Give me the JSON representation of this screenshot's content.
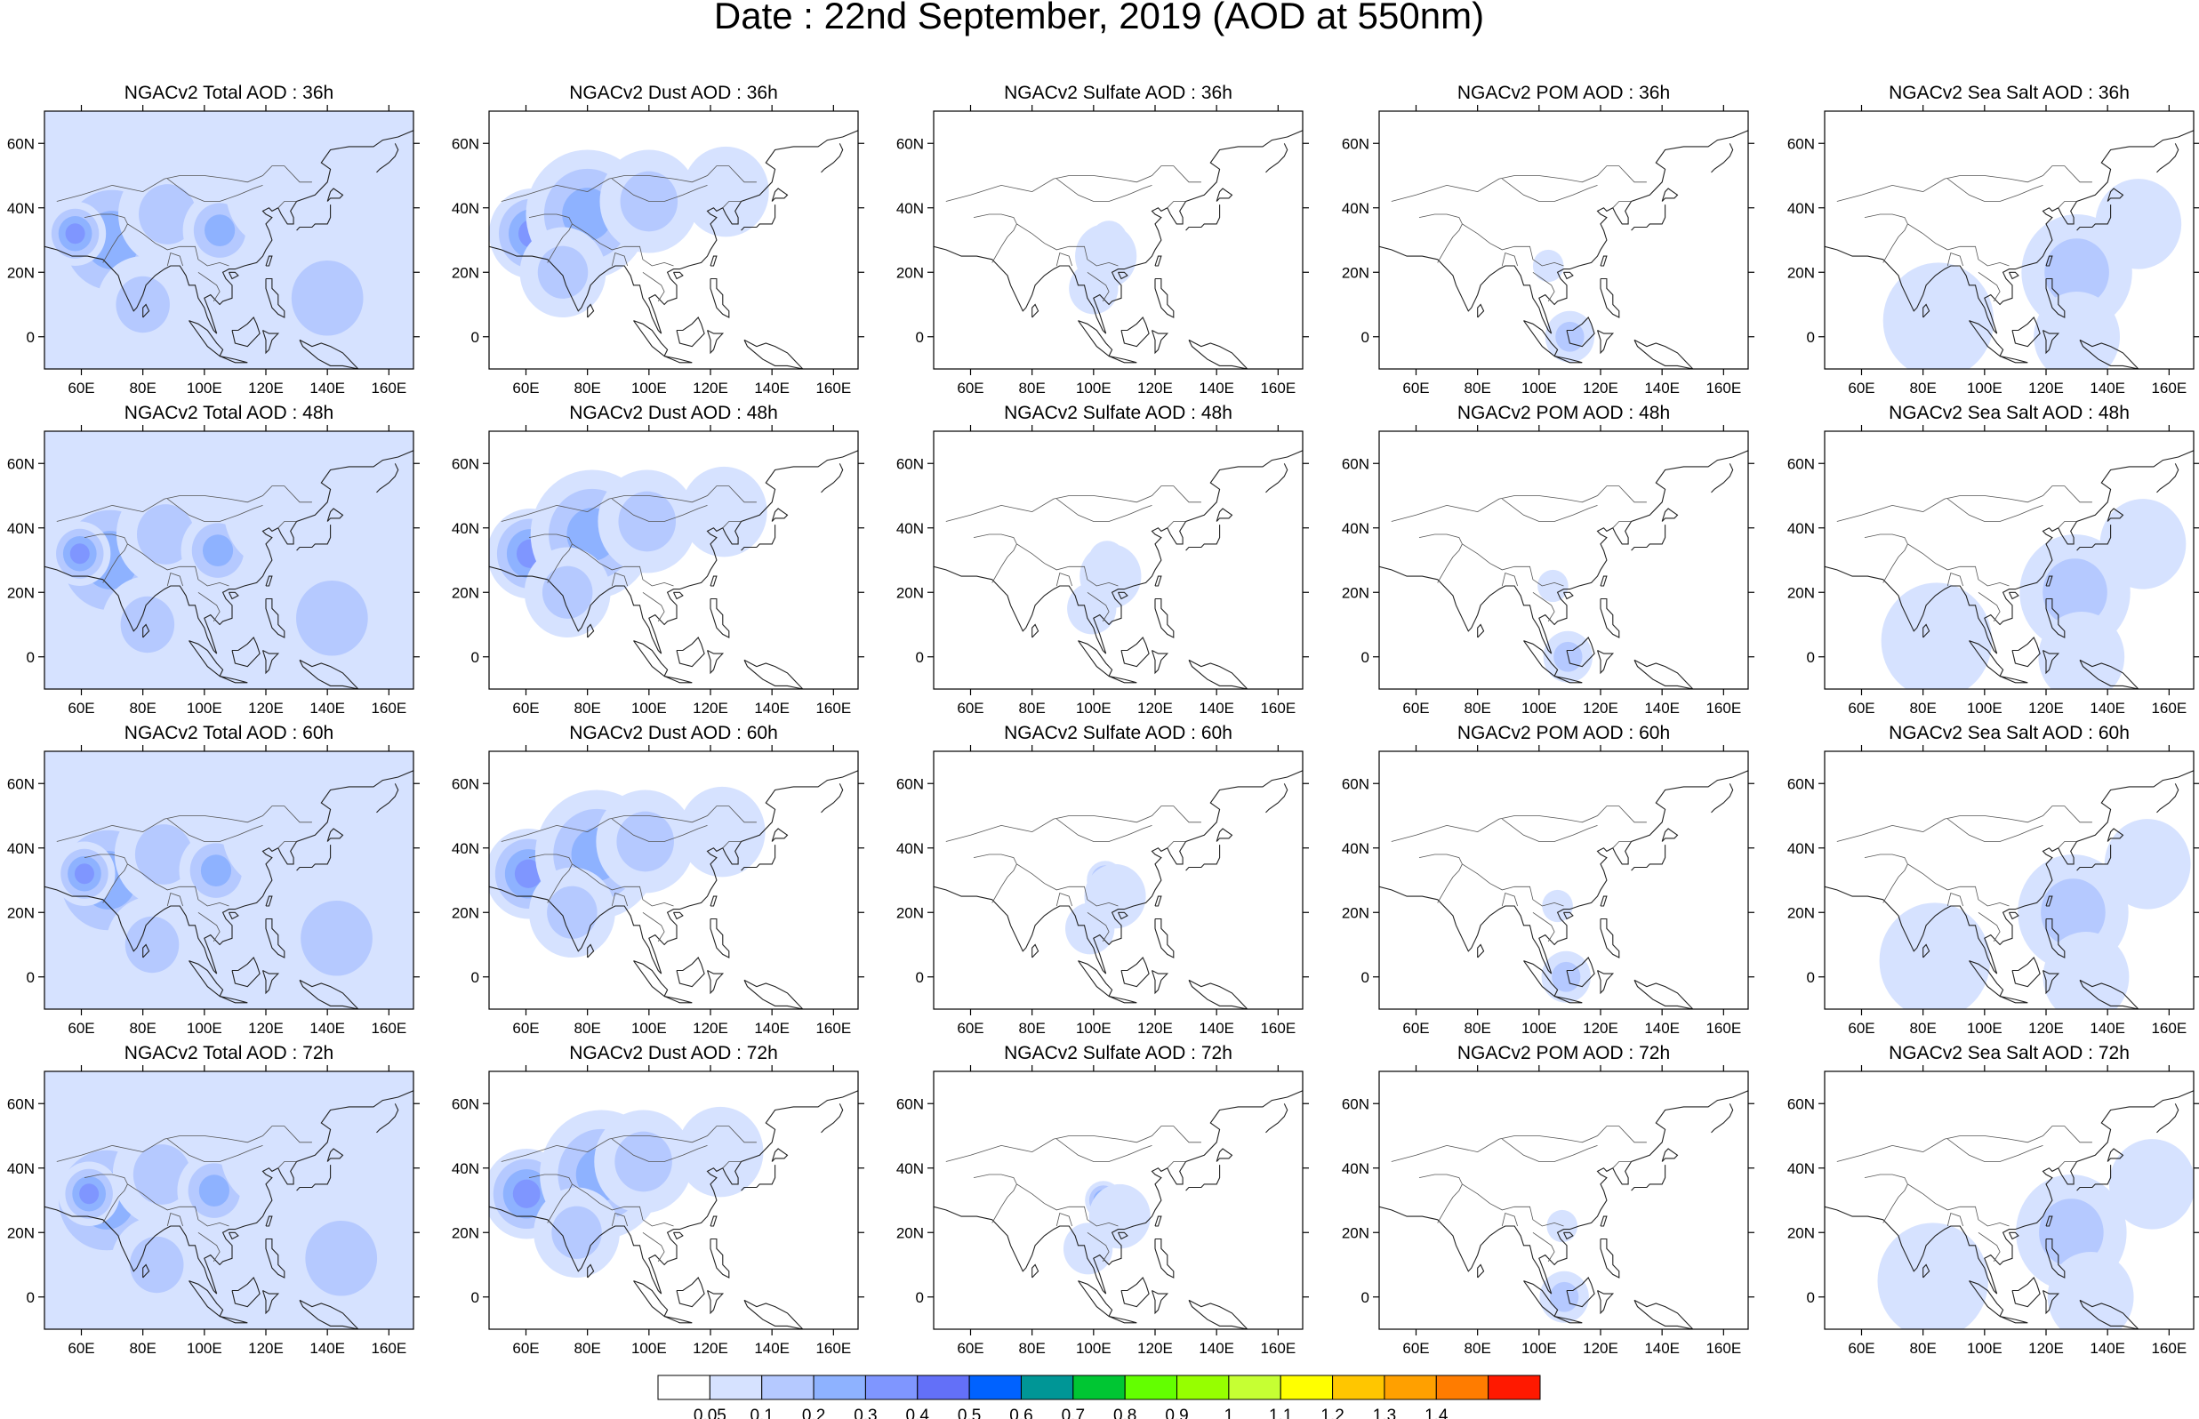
{
  "figure": {
    "title": "Date : 22nd September, 2019 (AOD at 550nm)"
  },
  "map": {
    "lon_range": [
      48,
      168
    ],
    "lat_range": [
      -10,
      70
    ],
    "lon_ticks": [
      60,
      80,
      100,
      120,
      140,
      160
    ],
    "lon_tick_labels": [
      "60E",
      "80E",
      "100E",
      "120E",
      "140E",
      "160E"
    ],
    "lat_ticks": [
      60,
      40,
      20,
      0
    ],
    "lat_tick_labels": [
      "60N",
      "40N",
      "20N",
      "0"
    ]
  },
  "panel_titles": [
    [
      "NGACv2 Total AOD : 36h",
      "NGACv2 Dust AOD : 36h",
      "NGACv2 Sulfate AOD : 36h",
      "NGACv2 POM AOD : 36h",
      "NGACv2 Sea Salt AOD : 36h"
    ],
    [
      "NGACv2 Total AOD : 48h",
      "NGACv2 Dust AOD : 48h",
      "NGACv2 Sulfate AOD : 48h",
      "NGACv2 POM AOD : 48h",
      "NGACv2 Sea Salt AOD : 48h"
    ],
    [
      "NGACv2 Total AOD : 60h",
      "NGACv2 Dust AOD : 60h",
      "NGACv2 Sulfate AOD : 60h",
      "NGACv2 POM AOD : 60h",
      "NGACv2 Sea Salt AOD : 60h"
    ],
    [
      "NGACv2 Total AOD : 72h",
      "NGACv2 Dust AOD : 72h",
      "NGACv2 Sulfate AOD : 72h",
      "NGACv2 POM AOD : 72h",
      "NGACv2 Sea Salt  AOD : 72h"
    ]
  ],
  "colorbar": {
    "colors": [
      "#ffffff",
      "#d6e2ff",
      "#b5c9ff",
      "#8eb2ff",
      "#7f96ff",
      "#6370f8",
      "#0062ff",
      "#009696",
      "#00c633",
      "#63ff00",
      "#96ff00",
      "#c6ff33",
      "#ffff00",
      "#ffc600",
      "#ffa000",
      "#ff7c00",
      "#ff1900"
    ],
    "labels": [
      "0.05",
      "0.1",
      "0.2",
      "0.3",
      "0.4",
      "0.5",
      "0.6",
      "0.7",
      "0.8",
      "0.9",
      "1",
      "1.1",
      "1.2",
      "1.3",
      "1.4"
    ]
  },
  "fields": {
    "total": [
      {
        "lon": 70,
        "lat": 30,
        "r": 22,
        "level": 3
      },
      {
        "lon": 58,
        "lat": 32,
        "r": 10,
        "level": 4
      },
      {
        "lon": 88,
        "lat": 38,
        "r": 16,
        "level": 2
      },
      {
        "lon": 105,
        "lat": 33,
        "r": 6,
        "level": 8
      },
      {
        "lon": 105,
        "lat": 33,
        "r": 12,
        "level": 3
      },
      {
        "lon": 140,
        "lat": 12,
        "r": 20,
        "level": 2
      },
      {
        "lon": 125,
        "lat": 45,
        "r": 18,
        "level": 1
      },
      {
        "lon": 80,
        "lat": 10,
        "r": 15,
        "level": 2
      },
      {
        "lon": 160,
        "lat": 40,
        "r": 14,
        "level": 1
      }
    ],
    "dust": [
      {
        "lon": 62,
        "lat": 32,
        "r": 14,
        "level": 4
      },
      {
        "lon": 80,
        "lat": 38,
        "r": 20,
        "level": 3
      },
      {
        "lon": 100,
        "lat": 42,
        "r": 16,
        "level": 2
      },
      {
        "lon": 72,
        "lat": 20,
        "r": 14,
        "level": 2
      },
      {
        "lon": 125,
        "lat": 45,
        "r": 14,
        "level": 1
      }
    ],
    "sulfate": [
      {
        "lon": 105,
        "lat": 30,
        "r": 6,
        "level": 4
      },
      {
        "lon": 104,
        "lat": 25,
        "r": 10,
        "level": 1
      },
      {
        "lon": 100,
        "lat": 15,
        "r": 8,
        "level": 1
      }
    ],
    "pom": [
      {
        "lon": 110,
        "lat": 0,
        "r": 8,
        "level": 2
      },
      {
        "lon": 103,
        "lat": 22,
        "r": 5,
        "level": 1
      }
    ],
    "seasalt": [
      {
        "lon": 130,
        "lat": 20,
        "r": 18,
        "level": 2
      },
      {
        "lon": 150,
        "lat": 35,
        "r": 14,
        "level": 1
      },
      {
        "lon": 85,
        "lat": 5,
        "r": 18,
        "level": 1
      },
      {
        "lon": 130,
        "lat": 0,
        "r": 14,
        "level": 1
      }
    ]
  }
}
